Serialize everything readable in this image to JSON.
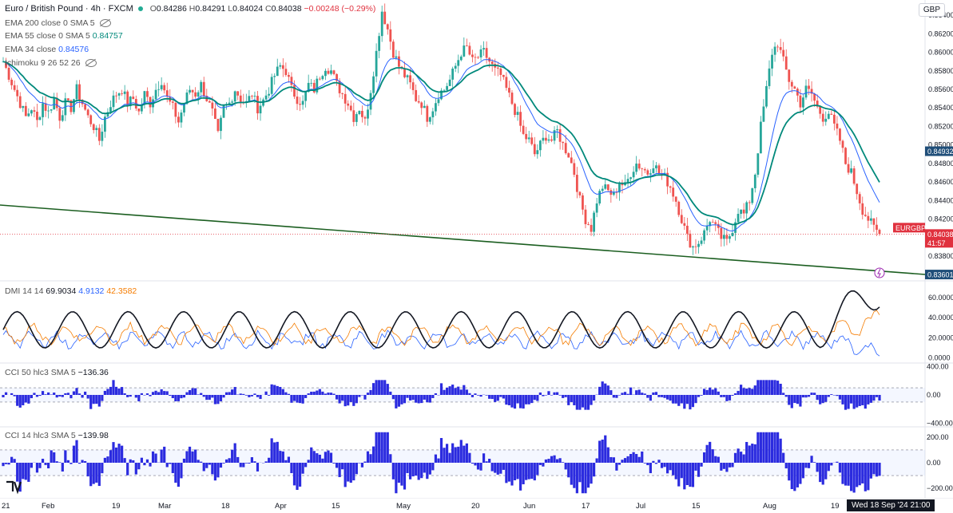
{
  "chart_data": {
    "type": "candlestick",
    "symbol_title": "Euro / British Pound · 4h · FXCM",
    "ohlc_text": {
      "o_label": "O",
      "o": "0.84286",
      "h_label": "H",
      "h": "0.84291",
      "l_label": "L",
      "l": "0.84024",
      "c_label": "C",
      "c": "0.84038",
      "change": "−0.00248 (−0.29%)"
    },
    "currency": "GBP",
    "indicators": {
      "ema200": {
        "label": "EMA 200 close 0 SMA 5",
        "value": ""
      },
      "ema55": {
        "label": "EMA 55 close 0 SMA 5",
        "value": "0.84757"
      },
      "ema34": {
        "label": "EMA 34 close",
        "value": "0.84576"
      },
      "ichimoku": {
        "label": "Ichimoku 9 26 52 26"
      },
      "dmi": {
        "label": "DMI 14 14",
        "adx": "69.9034",
        "plus": "4.9132",
        "minus": "42.3582"
      },
      "cci50": {
        "label": "CCI 50 hlc3 SMA 5",
        "value": "−136.36"
      },
      "cci14": {
        "label": "CCI 14 hlc3 SMA 5",
        "value": "−139.98"
      }
    },
    "price_axis": {
      "ylim": [
        0.8355,
        0.8653
      ],
      "ticks": [
        "0.86400",
        "0.86200",
        "0.86000",
        "0.85800",
        "0.85600",
        "0.85400",
        "0.85200",
        "0.85000",
        "0.84800",
        "0.84600",
        "0.84400",
        "0.84200",
        "0.83800"
      ],
      "tick_values": [
        0.864,
        0.862,
        0.86,
        0.858,
        0.856,
        0.854,
        0.852,
        0.85,
        0.848,
        0.846,
        0.844,
        0.842,
        0.838
      ],
      "tags": [
        {
          "text": "0.84932",
          "value": 0.84932,
          "color": "#1f4e79"
        },
        {
          "text": "EURGBP",
          "value": 0.84038,
          "color": "#e0313e"
        },
        {
          "text": "0.84038",
          "value": 0.84038,
          "color": "#e0313e"
        },
        {
          "text": "41:57",
          "value": 0.8396,
          "color": "#e0313e"
        },
        {
          "text": "0.83601",
          "value": 0.83601,
          "color": "#1f4e79"
        }
      ]
    },
    "dmi_axis": {
      "ylim": [
        -5,
        75
      ],
      "ticks": [
        "60.0000",
        "40.0000",
        "20.0000",
        "0.0000"
      ],
      "tick_values": [
        60,
        40,
        20,
        0
      ]
    },
    "cci50_axis": {
      "ylim": [
        -450,
        450
      ],
      "ticks": [
        "400.00",
        "0.00",
        "−400.00"
      ],
      "tick_values": [
        400,
        0,
        -400
      ]
    },
    "cci14_axis": {
      "ylim": [
        -280,
        280
      ],
      "ticks": [
        "200.00",
        "0.00",
        "−200.00"
      ],
      "tick_values": [
        200,
        0,
        -200
      ]
    },
    "x_axis": {
      "labels": [
        "21",
        "Feb",
        "19",
        "Mar",
        "18",
        "Apr",
        "15",
        "May",
        "20",
        "Jun",
        "17",
        "Jul",
        "15",
        "Aug",
        "19"
      ],
      "time_badge": "Wed 18 Sep '24  21:00"
    },
    "close_path": [
      0.859,
      0.8575,
      0.856,
      0.8545,
      0.853,
      0.854,
      0.8525,
      0.8545,
      0.8535,
      0.855,
      0.853,
      0.8545,
      0.854,
      0.856,
      0.8545,
      0.853,
      0.852,
      0.8505,
      0.853,
      0.8545,
      0.8555,
      0.856,
      0.8545,
      0.855,
      0.8535,
      0.8555,
      0.8545,
      0.856,
      0.857,
      0.855,
      0.854,
      0.8525,
      0.8545,
      0.856,
      0.8555,
      0.8565,
      0.855,
      0.8535,
      0.851,
      0.854,
      0.8545,
      0.856,
      0.855,
      0.8545,
      0.8555,
      0.854,
      0.8548,
      0.856,
      0.8575,
      0.8585,
      0.858,
      0.856,
      0.855,
      0.8545,
      0.8565,
      0.856,
      0.8575,
      0.8585,
      0.858,
      0.8565,
      0.8555,
      0.8545,
      0.853,
      0.854,
      0.8525,
      0.856,
      0.86,
      0.8645,
      0.8625,
      0.86,
      0.8585,
      0.8575,
      0.8565,
      0.855,
      0.8545,
      0.853,
      0.854,
      0.8555,
      0.856,
      0.857,
      0.8585,
      0.86,
      0.8605,
      0.859,
      0.8595,
      0.86,
      0.859,
      0.858,
      0.8575,
      0.856,
      0.8545,
      0.853,
      0.851,
      0.8505,
      0.849,
      0.85,
      0.851,
      0.8505,
      0.8515,
      0.85,
      0.849,
      0.847,
      0.844,
      0.842,
      0.841,
      0.844,
      0.8455,
      0.845,
      0.8445,
      0.846,
      0.8455,
      0.847,
      0.848,
      0.8475,
      0.847,
      0.848,
      0.847,
      0.8465,
      0.8455,
      0.844,
      0.842,
      0.84,
      0.839,
      0.8395,
      0.8405,
      0.842,
      0.841,
      0.84,
      0.8395,
      0.841,
      0.843,
      0.8425,
      0.844,
      0.847,
      0.852,
      0.856,
      0.86,
      0.861,
      0.859,
      0.857,
      0.856,
      0.8545,
      0.856,
      0.8555,
      0.854,
      0.853,
      0.8535,
      0.852,
      0.8505,
      0.848,
      0.847,
      0.845,
      0.843,
      0.842,
      0.841,
      0.8404
    ]
  },
  "colors": {
    "up": "#26a69a",
    "down": "#ef5350",
    "ema55": "#00897b",
    "ema34": "#2962ff",
    "trend": "#1b5e20",
    "adx": "#131722",
    "diplus": "#2962ff",
    "diminus": "#f57c00",
    "cci": "#2b2bdf"
  }
}
